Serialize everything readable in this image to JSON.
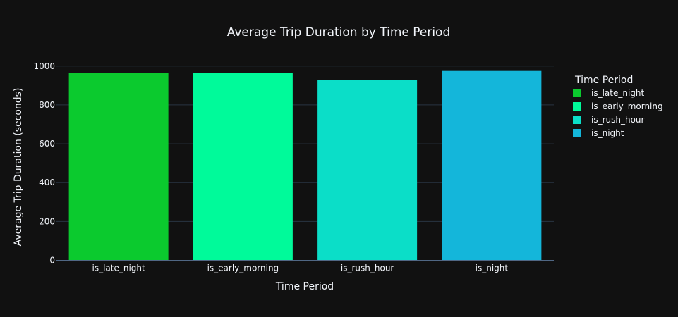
{
  "chart_data": {
    "type": "bar",
    "title": "Average Trip Duration by Time Period",
    "xlabel": "Time Period",
    "ylabel": "Average Trip Duration (seconds)",
    "categories": [
      "is_late_night",
      "is_early_morning",
      "is_rush_hour",
      "is_night"
    ],
    "values": [
      965,
      965,
      930,
      975
    ],
    "colors": [
      "#0bca2e",
      "#00fa9a",
      "#0bdec8",
      "#14b6da"
    ],
    "ylim": [
      0,
      1050
    ],
    "yticks": [
      0,
      200,
      400,
      600,
      800,
      1000
    ],
    "grid": true,
    "legend": {
      "title": "Time Period",
      "placement": "right",
      "entries": [
        "is_late_night",
        "is_early_morning",
        "is_rush_hour",
        "is_night"
      ]
    },
    "background": "#111111",
    "grid_color": "#283442"
  }
}
